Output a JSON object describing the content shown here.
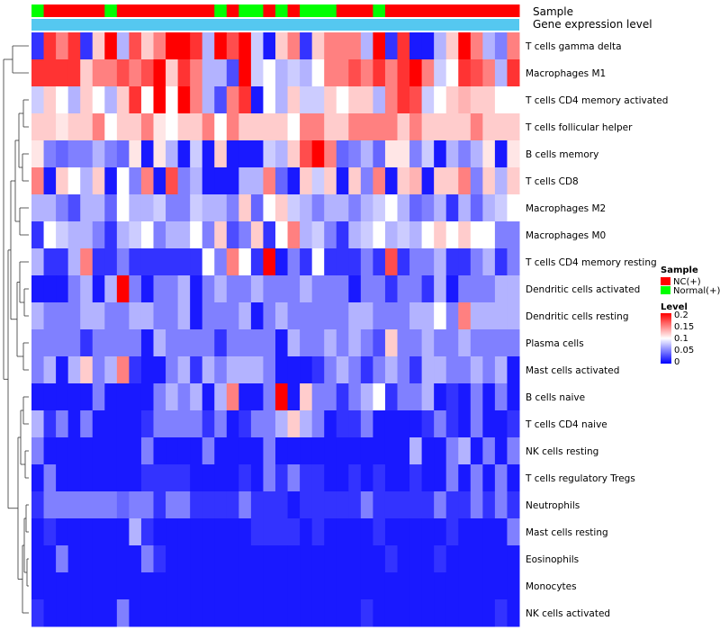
{
  "chart_data": {
    "type": "heatmap",
    "title": "",
    "annotation_tracks": [
      "Sample",
      "Gene expression level"
    ],
    "rows": [
      "T cells gamma delta",
      "Macrophages M1",
      "T cells CD4 memory activated",
      "T cells follicular helper",
      "B cells memory",
      "T cells CD8",
      "Macrophages M2",
      "Macrophages M0",
      "T cells CD4 memory resting",
      "Dendritic cells activated",
      "Dendritic cells resting",
      "Plasma cells",
      "Mast cells activated",
      "B cells naive",
      "T cells CD4 naive",
      "NK cells resting",
      "T cells regulatory  Tregs",
      "Neutrophils",
      "Mast cells resting",
      "Eosinophils",
      "Monocytes",
      "NK cells activated"
    ],
    "sample_groups": [
      "N",
      "C",
      "C",
      "C",
      "C",
      "C",
      "N",
      "C",
      "C",
      "C",
      "C",
      "C",
      "C",
      "C",
      "C",
      "N",
      "C",
      "N",
      "N",
      "C",
      "N",
      "C",
      "N",
      "N",
      "N",
      "C",
      "C",
      "C",
      "N",
      "C",
      "C",
      "C",
      "C",
      "C",
      "C",
      "C",
      "C",
      "C",
      "C",
      "C"
    ],
    "values": [
      [
        0.02,
        0.18,
        0.15,
        0.18,
        0.02,
        0.12,
        0.2,
        0.07,
        0.17,
        0.12,
        0.15,
        0.2,
        0.2,
        0.18,
        0.07,
        0.2,
        0.17,
        0.2,
        0.08,
        0.01,
        0.12,
        0.15,
        0.02,
        0.12,
        0.15,
        0.15,
        0.15,
        0.07,
        0.2,
        0.02,
        0.18,
        0.01,
        0.01,
        0.07,
        0.12,
        0.2,
        0.15,
        0.07,
        0.05,
        0.15
      ],
      [
        0.18,
        0.18,
        0.18,
        0.18,
        0.12,
        0.15,
        0.15,
        0.17,
        0.15,
        0.17,
        0.2,
        0.12,
        0.18,
        0.15,
        0.07,
        0.07,
        0.03,
        0.2,
        0.08,
        0.1,
        0.07,
        0.08,
        0.07,
        0.1,
        0.15,
        0.15,
        0.17,
        0.15,
        0.18,
        0.15,
        0.18,
        0.2,
        0.15,
        0.08,
        0.1,
        0.18,
        0.17,
        0.15,
        0.07,
        0.18
      ],
      [
        0.08,
        0.12,
        0.1,
        0.07,
        0.12,
        0.1,
        0.07,
        0.12,
        0.18,
        0.1,
        0.2,
        0.1,
        0.2,
        0.15,
        0.07,
        0.03,
        0.15,
        0.18,
        0.01,
        0.1,
        0.07,
        0.12,
        0.08,
        0.08,
        0.12,
        0.1,
        0.12,
        0.12,
        0.07,
        0.15,
        0.18,
        0.17,
        0.08,
        0.1,
        0.12,
        0.13,
        0.12,
        0.12,
        0.1,
        0.1
      ],
      [
        0.12,
        0.12,
        0.11,
        0.12,
        0.12,
        0.15,
        0.1,
        0.12,
        0.12,
        0.15,
        0.11,
        0.1,
        0.12,
        0.12,
        0.15,
        0.1,
        0.15,
        0.12,
        0.12,
        0.12,
        0.12,
        0.1,
        0.15,
        0.15,
        0.12,
        0.12,
        0.15,
        0.15,
        0.15,
        0.15,
        0.12,
        0.15,
        0.12,
        0.12,
        0.12,
        0.12,
        0.15,
        0.12,
        0.12,
        0.12
      ],
      [
        0.11,
        0.05,
        0.04,
        0.05,
        0.05,
        0.07,
        0.05,
        0.04,
        0.11,
        0.01,
        0.11,
        0.07,
        0.01,
        0.08,
        0.01,
        0.12,
        0.01,
        0.01,
        0.01,
        0.08,
        0.07,
        0.12,
        0.17,
        0.2,
        0.15,
        0.04,
        0.05,
        0.07,
        0.04,
        0.11,
        0.11,
        0.05,
        0.08,
        0.01,
        0.07,
        0.05,
        0.07,
        0.11,
        0.01,
        0.11
      ],
      [
        0.15,
        0.01,
        0.12,
        0.1,
        0.07,
        0.12,
        0.01,
        0.1,
        0.05,
        0.15,
        0.01,
        0.17,
        0.05,
        0.07,
        0.01,
        0.01,
        0.01,
        0.07,
        0.07,
        0.15,
        0.04,
        0.01,
        0.12,
        0.08,
        0.12,
        0.01,
        0.12,
        0.05,
        0.15,
        0.01,
        0.12,
        0.13,
        0.01,
        0.12,
        0.12,
        0.15,
        0.05,
        0.12,
        0.07,
        0.12
      ],
      [
        0.07,
        0.07,
        0.05,
        0.03,
        0.07,
        0.07,
        0.04,
        0.1,
        0.07,
        0.07,
        0.08,
        0.05,
        0.05,
        0.08,
        0.07,
        0.07,
        0.05,
        0.12,
        0.04,
        0.1,
        0.12,
        0.08,
        0.07,
        0.05,
        0.07,
        0.07,
        0.05,
        0.07,
        0.08,
        0.1,
        0.07,
        0.04,
        0.05,
        0.07,
        0.02,
        0.07,
        0.04,
        0.07,
        0.08,
        0.1
      ],
      [
        0.02,
        0.1,
        0.08,
        0.07,
        0.07,
        0.05,
        0.02,
        0.07,
        0.08,
        0.1,
        0.05,
        0.07,
        0.07,
        0.1,
        0.05,
        0.12,
        0.03,
        0.05,
        0.12,
        0.02,
        0.1,
        0.15,
        0.07,
        0.08,
        0.05,
        0.02,
        0.07,
        0.08,
        0.1,
        0.07,
        0.08,
        0.07,
        0.1,
        0.12,
        0.1,
        0.12,
        0.1,
        0.1,
        0.05,
        0.05
      ],
      [
        0.07,
        0.02,
        0.02,
        0.07,
        0.15,
        0.02,
        0.02,
        0.05,
        0.02,
        0.02,
        0.02,
        0.02,
        0.02,
        0.02,
        0.1,
        0.05,
        0.15,
        0.1,
        0.02,
        0.2,
        0.01,
        0.05,
        0.02,
        0.1,
        0.02,
        0.02,
        0.02,
        0.05,
        0.02,
        0.17,
        0.02,
        0.05,
        0.05,
        0.07,
        0.02,
        0.02,
        0.05,
        0.07,
        0.02,
        0.05
      ],
      [
        0.01,
        0.01,
        0.01,
        0.05,
        0.07,
        0.01,
        0.07,
        0.2,
        0.05,
        0.01,
        0.05,
        0.05,
        0.07,
        0.01,
        0.05,
        0.07,
        0.05,
        0.05,
        0.07,
        0.05,
        0.05,
        0.05,
        0.07,
        0.05,
        0.05,
        0.05,
        0.01,
        0.05,
        0.05,
        0.02,
        0.05,
        0.05,
        0.02,
        0.07,
        0.01,
        0.05,
        0.05,
        0.05,
        0.07,
        0.07
      ],
      [
        0.07,
        0.05,
        0.05,
        0.05,
        0.07,
        0.07,
        0.05,
        0.05,
        0.07,
        0.07,
        0.05,
        0.05,
        0.07,
        0.01,
        0.05,
        0.05,
        0.05,
        0.07,
        0.01,
        0.05,
        0.07,
        0.05,
        0.05,
        0.05,
        0.05,
        0.05,
        0.07,
        0.07,
        0.05,
        0.05,
        0.05,
        0.07,
        0.07,
        0.1,
        0.05,
        0.15,
        0.07,
        0.07,
        0.07,
        0.07
      ],
      [
        0.05,
        0.05,
        0.05,
        0.05,
        0.02,
        0.05,
        0.05,
        0.05,
        0.05,
        0.01,
        0.07,
        0.05,
        0.05,
        0.05,
        0.05,
        0.02,
        0.05,
        0.05,
        0.05,
        0.05,
        0.01,
        0.07,
        0.05,
        0.05,
        0.07,
        0.05,
        0.07,
        0.05,
        0.03,
        0.12,
        0.05,
        0.05,
        0.07,
        0.05,
        0.05,
        0.07,
        0.05,
        0.05,
        0.05,
        0.05
      ],
      [
        0.05,
        0.07,
        0.01,
        0.07,
        0.12,
        0.05,
        0.07,
        0.15,
        0.02,
        0.01,
        0.01,
        0.05,
        0.07,
        0.02,
        0.07,
        0.05,
        0.07,
        0.07,
        0.07,
        0.05,
        0.01,
        0.01,
        0.01,
        0.02,
        0.05,
        0.07,
        0.05,
        0.02,
        0.05,
        0.07,
        0.05,
        0.02,
        0.07,
        0.07,
        0.05,
        0.05,
        0.07,
        0.05,
        0.07,
        0.01
      ],
      [
        0.01,
        0.01,
        0.01,
        0.01,
        0.01,
        0.05,
        0.01,
        0.01,
        0.01,
        0.01,
        0.05,
        0.07,
        0.05,
        0.07,
        0.01,
        0.07,
        0.15,
        0.01,
        0.01,
        0.05,
        0.2,
        0.01,
        0.12,
        0.05,
        0.05,
        0.02,
        0.05,
        0.07,
        0.1,
        0.02,
        0.05,
        0.05,
        0.07,
        0.01,
        0.02,
        0.01,
        0.05,
        0.01,
        0.05,
        0.01
      ],
      [
        0.07,
        0.02,
        0.05,
        0.01,
        0.05,
        0.01,
        0.01,
        0.01,
        0.01,
        0.02,
        0.05,
        0.05,
        0.05,
        0.05,
        0.02,
        0.05,
        0.01,
        0.02,
        0.05,
        0.05,
        0.07,
        0.12,
        0.07,
        0.05,
        0.01,
        0.02,
        0.02,
        0.05,
        0.01,
        0.01,
        0.01,
        0.01,
        0.02,
        0.05,
        0.02,
        0.01,
        0.05,
        0.01,
        0.01,
        0.02
      ],
      [
        0.05,
        0.01,
        0.01,
        0.01,
        0.01,
        0.01,
        0.01,
        0.01,
        0.01,
        0.05,
        0.01,
        0.01,
        0.01,
        0.01,
        0.05,
        0.01,
        0.01,
        0.01,
        0.01,
        0.05,
        0.01,
        0.01,
        0.01,
        0.01,
        0.01,
        0.01,
        0.01,
        0.01,
        0.01,
        0.01,
        0.01,
        0.07,
        0.01,
        0.01,
        0.05,
        0.07,
        0.01,
        0.05,
        0.01,
        0.05
      ],
      [
        0.01,
        0.05,
        0.01,
        0.01,
        0.01,
        0.01,
        0.01,
        0.01,
        0.01,
        0.02,
        0.02,
        0.02,
        0.02,
        0.01,
        0.01,
        0.01,
        0.01,
        0.02,
        0.01,
        0.05,
        0.02,
        0.05,
        0.02,
        0.02,
        0.01,
        0.01,
        0.02,
        0.01,
        0.02,
        0.01,
        0.01,
        0.02,
        0.01,
        0.01,
        0.05,
        0.01,
        0.05,
        0.01,
        0.05,
        0.01
      ],
      [
        0.02,
        0.05,
        0.05,
        0.05,
        0.05,
        0.05,
        0.05,
        0.04,
        0.05,
        0.05,
        0.02,
        0.05,
        0.05,
        0.02,
        0.02,
        0.02,
        0.02,
        0.05,
        0.02,
        0.02,
        0.02,
        0.01,
        0.02,
        0.02,
        0.02,
        0.02,
        0.02,
        0.05,
        0.02,
        0.02,
        0.02,
        0.02,
        0.02,
        0.05,
        0.02,
        0.02,
        0.05,
        0.02,
        0.05,
        0.02
      ],
      [
        0.01,
        0.02,
        0.01,
        0.01,
        0.01,
        0.01,
        0.01,
        0.01,
        0.07,
        0.02,
        0.01,
        0.01,
        0.01,
        0.01,
        0.01,
        0.01,
        0.01,
        0.01,
        0.02,
        0.02,
        0.02,
        0.02,
        0.01,
        0.02,
        0.01,
        0.01,
        0.01,
        0.01,
        0.02,
        0.01,
        0.01,
        0.01,
        0.01,
        0.01,
        0.02,
        0.01,
        0.01,
        0.01,
        0.01,
        0.05
      ],
      [
        0.01,
        0.01,
        0.05,
        0.01,
        0.01,
        0.01,
        0.01,
        0.01,
        0.01,
        0.05,
        0.02,
        0.01,
        0.01,
        0.01,
        0.01,
        0.01,
        0.01,
        0.01,
        0.01,
        0.01,
        0.01,
        0.01,
        0.01,
        0.01,
        0.01,
        0.01,
        0.01,
        0.01,
        0.01,
        0.02,
        0.01,
        0.01,
        0.01,
        0.02,
        0.01,
        0.01,
        0.01,
        0.01,
        0.01,
        0.01
      ],
      [
        0.01,
        0.01,
        0.01,
        0.01,
        0.01,
        0.01,
        0.01,
        0.01,
        0.01,
        0.01,
        0.01,
        0.01,
        0.01,
        0.01,
        0.01,
        0.01,
        0.01,
        0.01,
        0.01,
        0.01,
        0.01,
        0.01,
        0.01,
        0.01,
        0.01,
        0.01,
        0.01,
        0.01,
        0.01,
        0.01,
        0.01,
        0.01,
        0.01,
        0.01,
        0.01,
        0.01,
        0.01,
        0.01,
        0.01,
        0.01
      ],
      [
        0.02,
        0.01,
        0.01,
        0.01,
        0.01,
        0.01,
        0.01,
        0.05,
        0.01,
        0.01,
        0.01,
        0.01,
        0.01,
        0.01,
        0.01,
        0.01,
        0.01,
        0.01,
        0.01,
        0.01,
        0.01,
        0.01,
        0.01,
        0.01,
        0.01,
        0.01,
        0.01,
        0.02,
        0.01,
        0.01,
        0.01,
        0.01,
        0.01,
        0.01,
        0.01,
        0.01,
        0.01,
        0.01,
        0.02,
        0.01
      ]
    ],
    "color_scale": {
      "min": 0,
      "max": 0.2,
      "colors": [
        "#0000ff",
        "#ffffff",
        "#ff0000"
      ],
      "breaks": [
        "0.2",
        "0.15",
        "0.1",
        "0.05",
        "0"
      ]
    },
    "legend": {
      "sample_title": "Sample",
      "sample_items": [
        {
          "label": "NC(+)",
          "color": "#ff0000"
        },
        {
          "label": "Normal(+)",
          "color": "#00ff00"
        }
      ],
      "level_title": "Level"
    },
    "track_colors": {
      "expression": "#55c8f0",
      "C": "#ff0000",
      "N": "#00ff00"
    }
  }
}
